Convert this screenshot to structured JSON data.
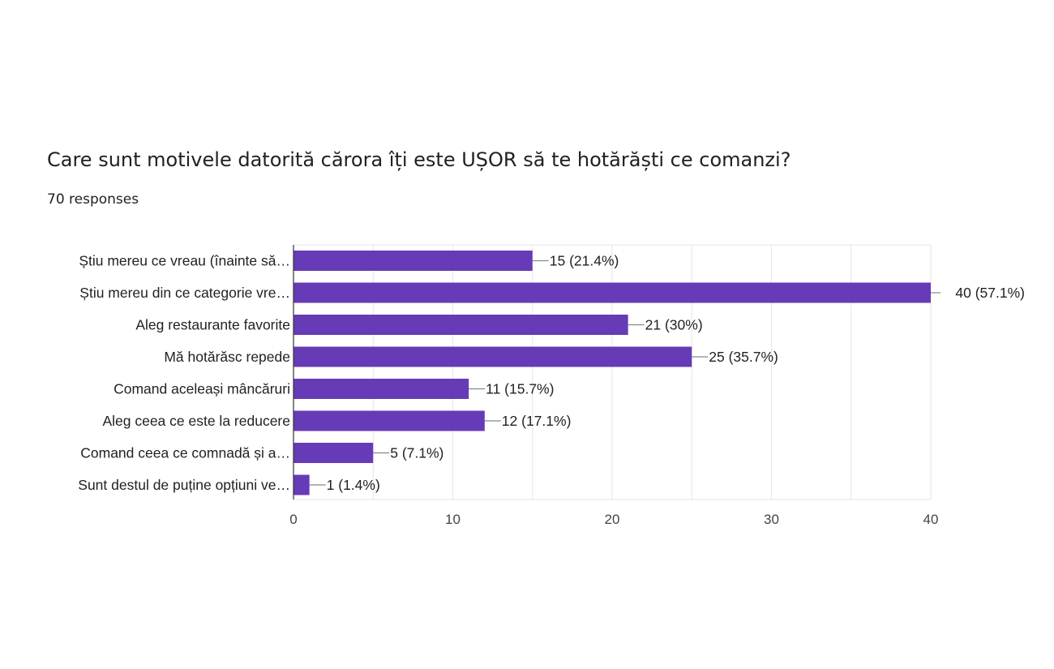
{
  "question": {
    "title": "Care sunt motivele datorită cărora îți este UȘOR să te hotărăști ce comanzi?",
    "responses": "70 responses"
  },
  "colors": {
    "bar": "#673ab7",
    "grid": "#e6e6e6",
    "axis": "#333333",
    "connector": "#888888"
  },
  "chart_data": {
    "type": "bar",
    "orientation": "horizontal",
    "categories": [
      "Știu mereu ce vreau (înainte să…",
      "Știu mereu din ce categorie vre…",
      "Aleg restaurante favorite",
      "Mă hotărăsc repede",
      "Comand aceleași mâncăruri",
      "Aleg ceea ce este la reducere",
      "Comand ceea ce comnadă și a…",
      "Sunt destul de puține opțiuni ve…"
    ],
    "values": [
      15,
      40,
      21,
      25,
      11,
      12,
      5,
      1
    ],
    "data_labels": [
      "15 (21.4%)",
      "40 (57.1%)",
      "21 (30%)",
      "25 (35.7%)",
      "11 (15.7%)",
      "12 (17.1%)",
      "5 (7.1%)",
      "1 (1.4%)"
    ],
    "xlim": [
      0,
      40
    ],
    "xticks": [
      0,
      10,
      20,
      30,
      40
    ],
    "grid": true
  }
}
